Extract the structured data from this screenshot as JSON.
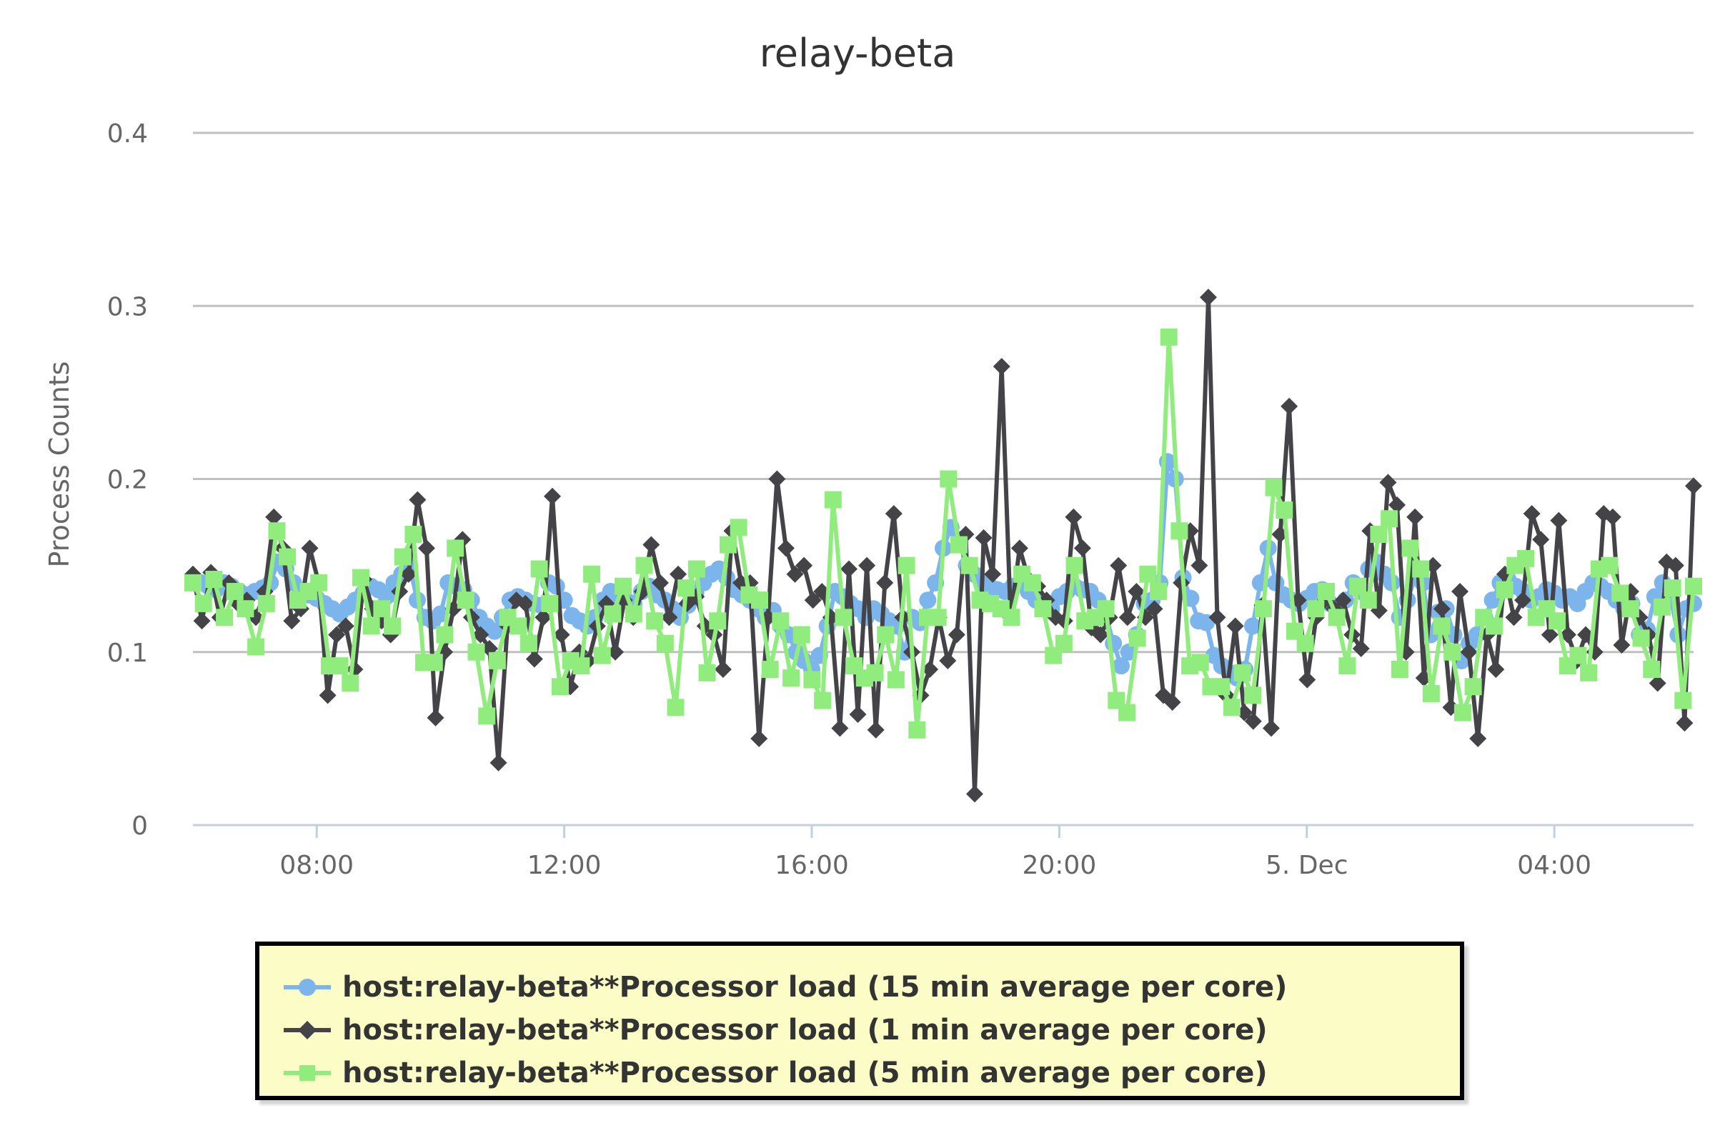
{
  "chart_data": {
    "type": "line",
    "title": "relay-beta",
    "ylabel": "Process Counts",
    "xlabel": "",
    "ylim": [
      0,
      0.4
    ],
    "y_ticks": [
      "0",
      "0.1",
      "0.2",
      "0.3",
      "0.4"
    ],
    "x_tick_labels": [
      "08:00",
      "12:00",
      "16:00",
      "20:00",
      "5. Dec",
      "04:00"
    ],
    "x_start": "06:00",
    "x_end": "06:15 (5. Dec)",
    "x_interval_minutes": 5,
    "grid": true,
    "legend_position": "bottom-center",
    "series": [
      {
        "name": "host:relay-beta**Processor load (15 min average per core)",
        "color": "#7cb5ec",
        "marker": "circle",
        "values": [
          0.14,
          0.14,
          0.138,
          0.136,
          0.14,
          0.138,
          0.135,
          0.133,
          0.135,
          0.137,
          0.14,
          0.152,
          0.148,
          0.14,
          0.135,
          0.133,
          0.131,
          0.128,
          0.125,
          0.122,
          0.126,
          0.13,
          0.134,
          0.138,
          0.136,
          0.132,
          0.14,
          0.145,
          0.15,
          0.13,
          0.12,
          0.118,
          0.122,
          0.14,
          0.138,
          0.136,
          0.13,
          0.12,
          0.115,
          0.112,
          0.12,
          0.13,
          0.132,
          0.13,
          0.128,
          0.127,
          0.14,
          0.138,
          0.13,
          0.121,
          0.118,
          0.115,
          0.12,
          0.13,
          0.135,
          0.132,
          0.13,
          0.128,
          0.135,
          0.138,
          0.133,
          0.13,
          0.125,
          0.12,
          0.127,
          0.134,
          0.14,
          0.145,
          0.148,
          0.143,
          0.136,
          0.133,
          0.13,
          0.125,
          0.12,
          0.124,
          0.115,
          0.11,
          0.1,
          0.095,
          0.09,
          0.098,
          0.115,
          0.135,
          0.132,
          0.128,
          0.125,
          0.12,
          0.125,
          0.122,
          0.118,
          0.115,
          0.1,
          0.12,
          0.117,
          0.13,
          0.14,
          0.16,
          0.172,
          0.165,
          0.15,
          0.145,
          0.14,
          0.138,
          0.136,
          0.135,
          0.138,
          0.14,
          0.135,
          0.13,
          0.128,
          0.125,
          0.132,
          0.135,
          0.138,
          0.136,
          0.135,
          0.13,
          0.122,
          0.105,
          0.092,
          0.1,
          0.11,
          0.128,
          0.13,
          0.14,
          0.21,
          0.2,
          0.143,
          0.131,
          0.118,
          0.117,
          0.098,
          0.092,
          0.088,
          0.085,
          0.09,
          0.115,
          0.14,
          0.16,
          0.14,
          0.133,
          0.13,
          0.128,
          0.131,
          0.135,
          0.136,
          0.128,
          0.125,
          0.13,
          0.14,
          0.135,
          0.148,
          0.152,
          0.145,
          0.14,
          0.12,
          0.13,
          0.143,
          0.14,
          0.11,
          0.123,
          0.125,
          0.11,
          0.095,
          0.105,
          0.11,
          0.12,
          0.13,
          0.14,
          0.142,
          0.138,
          0.135,
          0.13,
          0.132,
          0.136,
          0.134,
          0.13,
          0.132,
          0.128,
          0.135,
          0.14,
          0.138,
          0.135,
          0.13,
          0.125,
          0.128,
          0.11,
          0.113,
          0.132,
          0.14,
          0.132,
          0.11,
          0.125,
          0.128
        ]
      },
      {
        "name": "host:relay-beta**Processor load (1 min average per core)",
        "color": "#434348",
        "marker": "diamond",
        "values": [
          0.145,
          0.118,
          0.146,
          0.12,
          0.14,
          0.128,
          0.13,
          0.12,
          0.135,
          0.178,
          0.16,
          0.118,
          0.125,
          0.16,
          0.14,
          0.075,
          0.11,
          0.115,
          0.09,
          0.142,
          0.125,
          0.118,
          0.11,
          0.135,
          0.145,
          0.188,
          0.16,
          0.062,
          0.1,
          0.125,
          0.165,
          0.12,
          0.11,
          0.102,
          0.036,
          0.115,
          0.13,
          0.128,
          0.096,
          0.12,
          0.19,
          0.11,
          0.08,
          0.1,
          0.095,
          0.115,
          0.128,
          0.1,
          0.13,
          0.12,
          0.135,
          0.162,
          0.14,
          0.12,
          0.145,
          0.128,
          0.132,
          0.115,
          0.11,
          0.09,
          0.17,
          0.14,
          0.14,
          0.05,
          0.12,
          0.2,
          0.16,
          0.145,
          0.15,
          0.13,
          0.135,
          0.12,
          0.056,
          0.148,
          0.064,
          0.15,
          0.055,
          0.14,
          0.18,
          0.12,
          0.1,
          0.075,
          0.09,
          0.12,
          0.095,
          0.11,
          0.168,
          0.018,
          0.166,
          0.145,
          0.265,
          0.12,
          0.16,
          0.142,
          0.138,
          0.13,
          0.12,
          0.118,
          0.178,
          0.16,
          0.114,
          0.11,
          0.12,
          0.15,
          0.12,
          0.135,
          0.12,
          0.125,
          0.075,
          0.071,
          0.14,
          0.17,
          0.15,
          0.305,
          0.12,
          0.075,
          0.115,
          0.065,
          0.06,
          0.127,
          0.056,
          0.168,
          0.242,
          0.13,
          0.084,
          0.12,
          0.13,
          0.125,
          0.13,
          0.11,
          0.102,
          0.17,
          0.124,
          0.198,
          0.185,
          0.1,
          0.178,
          0.085,
          0.15,
          0.125,
          0.068,
          0.135,
          0.1,
          0.05,
          0.11,
          0.09,
          0.145,
          0.12,
          0.13,
          0.18,
          0.165,
          0.11,
          0.176,
          0.11,
          0.095,
          0.11,
          0.1,
          0.18,
          0.178,
          0.104,
          0.135,
          0.12,
          0.11,
          0.082,
          0.152,
          0.15,
          0.059,
          0.196
        ]
      },
      {
        "name": "host:relay-beta**Processor load (5 min average per core)",
        "color": "#90ed7d",
        "marker": "square",
        "values": [
          0.14,
          0.128,
          0.142,
          0.12,
          0.135,
          0.125,
          0.103,
          0.128,
          0.17,
          0.155,
          0.13,
          0.135,
          0.14,
          0.092,
          0.092,
          0.082,
          0.143,
          0.115,
          0.125,
          0.115,
          0.155,
          0.168,
          0.094,
          0.094,
          0.11,
          0.16,
          0.13,
          0.1,
          0.063,
          0.095,
          0.12,
          0.115,
          0.105,
          0.148,
          0.128,
          0.08,
          0.095,
          0.092,
          0.145,
          0.098,
          0.122,
          0.138,
          0.122,
          0.15,
          0.118,
          0.105,
          0.068,
          0.137,
          0.148,
          0.088,
          0.118,
          0.162,
          0.172,
          0.133,
          0.13,
          0.09,
          0.118,
          0.085,
          0.11,
          0.084,
          0.072,
          0.188,
          0.12,
          0.092,
          0.085,
          0.088,
          0.11,
          0.084,
          0.15,
          0.055,
          0.12,
          0.12,
          0.2,
          0.162,
          0.15,
          0.13,
          0.128,
          0.125,
          0.12,
          0.145,
          0.14,
          0.125,
          0.098,
          0.105,
          0.15,
          0.118,
          0.12,
          0.125,
          0.072,
          0.065,
          0.108,
          0.145,
          0.135,
          0.282,
          0.17,
          0.092,
          0.094,
          0.08,
          0.08,
          0.068,
          0.088,
          0.075,
          0.125,
          0.195,
          0.182,
          0.112,
          0.105,
          0.125,
          0.135,
          0.12,
          0.092,
          0.138,
          0.13,
          0.168,
          0.177,
          0.09,
          0.16,
          0.148,
          0.076,
          0.115,
          0.1,
          0.065,
          0.08,
          0.12,
          0.115,
          0.136,
          0.15,
          0.154,
          0.12,
          0.125,
          0.118,
          0.092,
          0.098,
          0.088,
          0.148,
          0.15,
          0.134,
          0.125,
          0.108,
          0.09,
          0.126,
          0.137,
          0.072,
          0.138
        ]
      }
    ]
  }
}
